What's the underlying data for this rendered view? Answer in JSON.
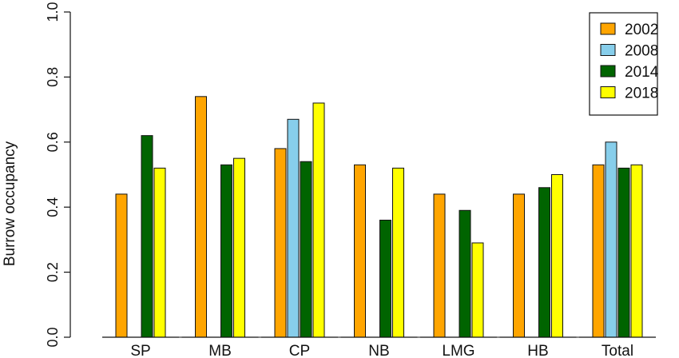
{
  "chart_data": {
    "type": "bar",
    "ylabel": "Burrow occupancy",
    "ylim": [
      0,
      1
    ],
    "yticks": [
      "0.0",
      "0.2",
      "0.4",
      "0.6",
      "0.8",
      "1.0"
    ],
    "categories": [
      "SP",
      "MB",
      "CP",
      "NB",
      "LMG",
      "HB",
      "Total"
    ],
    "series": [
      {
        "name": "2002",
        "color": "#FFA500",
        "values": [
          0.44,
          0.74,
          0.58,
          0.53,
          0.44,
          0.44,
          0.53
        ]
      },
      {
        "name": "2008",
        "color": "#87CEEB",
        "values": [
          null,
          null,
          0.67,
          null,
          null,
          null,
          0.6
        ]
      },
      {
        "name": "2014",
        "color": "#006400",
        "values": [
          0.62,
          0.53,
          0.54,
          0.36,
          0.39,
          0.46,
          0.52
        ]
      },
      {
        "name": "2018",
        "color": "#FFFF00",
        "values": [
          0.52,
          0.55,
          0.72,
          0.52,
          0.29,
          0.5,
          0.53
        ]
      }
    ],
    "legend_position": "top-right",
    "grid": false
  }
}
